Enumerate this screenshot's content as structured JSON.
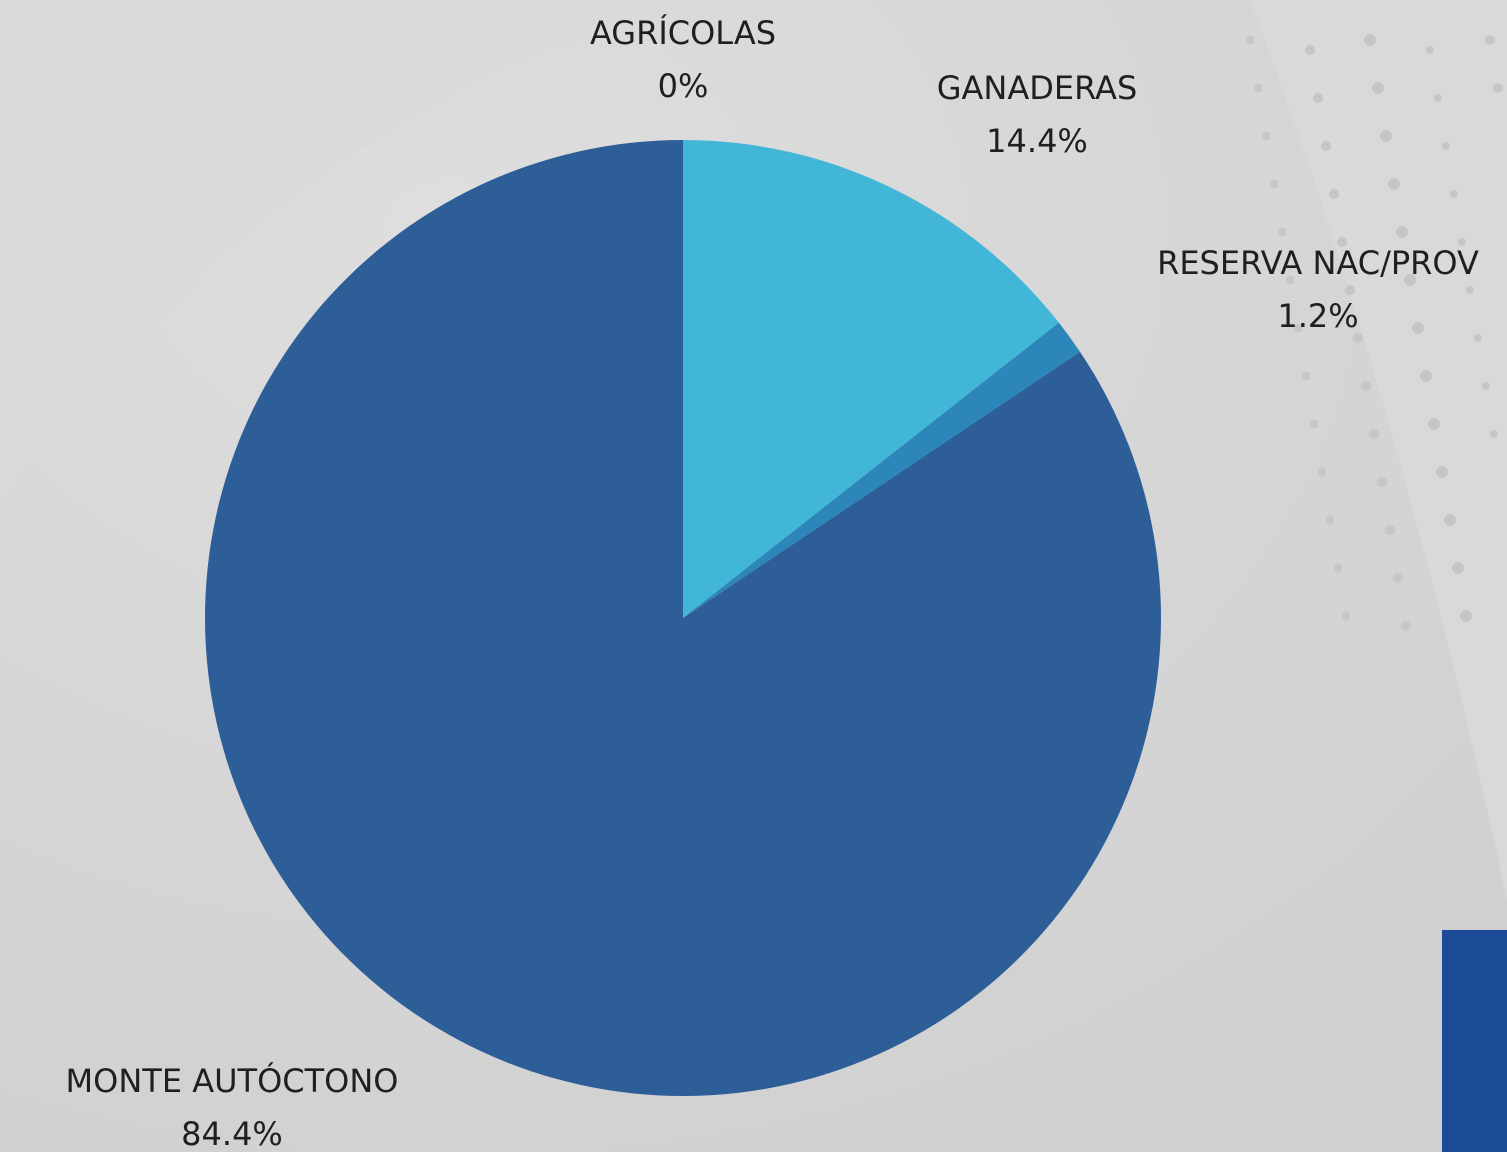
{
  "chart_data": {
    "type": "pie",
    "categories": [
      "AGRÍCOLAS",
      "GANADERAS",
      "RESERVA NAC/PROV",
      "MONTE AUTÓCTONO"
    ],
    "values": [
      0,
      14.4,
      1.2,
      84.4
    ],
    "value_labels": [
      "0%",
      "14.4%",
      "1.2%",
      "84.4%"
    ],
    "colors": [
      "#6fa8dc",
      "#41b6d6",
      "#2c86b9",
      "#2e5e98"
    ]
  }
}
